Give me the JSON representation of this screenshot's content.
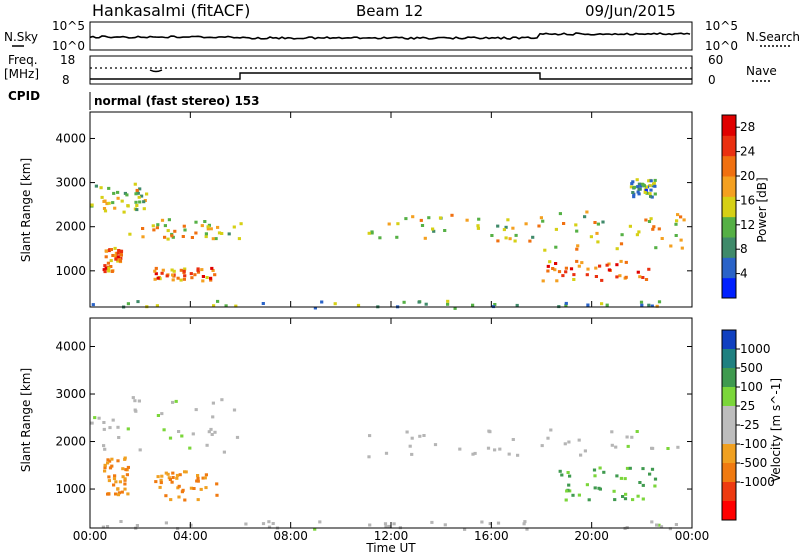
{
  "header": {
    "station": "Hankasalmi (fitACF)",
    "beam": "Beam 12",
    "date": "09/Jun/2015"
  },
  "panel_labels": {
    "nsky": "N.Sky",
    "nsearch": "N.Search",
    "freq": "Freq.",
    "freq_unit": "[MHz]",
    "nave": "Nave",
    "cpid": "CPID",
    "cpid_text": "normal (fast stereo) 153"
  },
  "noise_axis": {
    "left_ticks": [
      "10^5",
      "10^0"
    ],
    "right_ticks": [
      "10^5",
      "10^0"
    ]
  },
  "freq_axis": {
    "left_ticks": [
      "18",
      "8"
    ],
    "right_ticks": [
      "60",
      "0"
    ]
  },
  "colors": {
    "power_scale": [
      "#0020ff",
      "#2a63c8",
      "#3f8a6a",
      "#55b045",
      "#d6d015",
      "#f4a020",
      "#f07010",
      "#ea3010",
      "#e00000"
    ],
    "velocity_scale": [
      "#1040c0",
      "#1f8080",
      "#3f9a4f",
      "#7bd63a",
      "#bdbdbd",
      "#bdbdbd",
      "#f0a020",
      "#f07a10",
      "#ee3a10",
      "#ff0000"
    ],
    "background_scatter": "#b5b5b5"
  },
  "chart_data": [
    {
      "type": "heatmap",
      "title": "",
      "xlabel": "Time UT",
      "ylabel": "Slant Range [km]",
      "x_ticks": [
        "00:00",
        "04:00",
        "08:00",
        "12:00",
        "16:00",
        "20:00",
        "00:00"
      ],
      "y_ticks": [
        1000,
        2000,
        3000,
        4000
      ],
      "xlim_hours": [
        0,
        24
      ],
      "ylim_km": [
        180,
        4600
      ],
      "colorbar": {
        "label": "Power [dB]",
        "ticks": [
          4,
          8,
          12,
          16,
          20,
          24,
          28
        ],
        "range": [
          0,
          30
        ]
      },
      "echo_regions": [
        {
          "t0": 0.0,
          "t1": 2.2,
          "r0": 2300,
          "r1": 3000,
          "level": 0.45
        },
        {
          "t0": 1.5,
          "t1": 6.0,
          "r0": 1750,
          "r1": 2200,
          "level": 0.5
        },
        {
          "t0": 0.5,
          "t1": 1.2,
          "r0": 1000,
          "r1": 1600,
          "level": 0.7
        },
        {
          "t0": 2.5,
          "t1": 5.0,
          "r0": 800,
          "r1": 1100,
          "level": 0.75
        },
        {
          "t0": 11.0,
          "t1": 18.0,
          "r0": 1700,
          "r1": 2300,
          "level": 0.5
        },
        {
          "t0": 18.0,
          "t1": 24.0,
          "r0": 1500,
          "r1": 2400,
          "level": 0.5
        },
        {
          "t0": 18.0,
          "t1": 22.5,
          "r0": 800,
          "r1": 1300,
          "level": 0.8
        },
        {
          "t0": 21.5,
          "t1": 22.5,
          "r0": 2700,
          "r1": 3100,
          "level": 0.3
        },
        {
          "t0": 0.0,
          "t1": 24.0,
          "r0": 180,
          "r1": 350,
          "level": 0.35
        }
      ]
    },
    {
      "type": "heatmap",
      "title": "",
      "xlabel": "Time UT",
      "ylabel": "Slant Range [km]",
      "x_ticks": [
        "00:00",
        "04:00",
        "08:00",
        "12:00",
        "16:00",
        "20:00",
        "00:00"
      ],
      "y_ticks": [
        1000,
        2000,
        3000,
        4000
      ],
      "xlim_hours": [
        0,
        24
      ],
      "ylim_km": [
        180,
        4600
      ],
      "colorbar": {
        "label": "Velocity [m s^-1]",
        "ticks": [
          1000,
          500,
          100,
          25,
          -25,
          -100,
          -500,
          -1000
        ]
      },
      "echo_regions": [
        {
          "t0": 0.0,
          "t1": 6.0,
          "r0": 1800,
          "r1": 3000,
          "class": "ground"
        },
        {
          "t0": 0.5,
          "t1": 1.5,
          "r0": 900,
          "r1": 1700,
          "class": "negative"
        },
        {
          "t0": 2.5,
          "t1": 5.0,
          "r0": 800,
          "r1": 1400,
          "class": "negative"
        },
        {
          "t0": 11.0,
          "t1": 24.0,
          "r0": 1700,
          "r1": 2300,
          "class": "ground"
        },
        {
          "t0": 18.5,
          "t1": 22.5,
          "r0": 800,
          "r1": 1500,
          "class": "positive"
        },
        {
          "t0": 0.0,
          "t1": 24.0,
          "r0": 180,
          "r1": 350,
          "class": "ground"
        }
      ]
    }
  ]
}
